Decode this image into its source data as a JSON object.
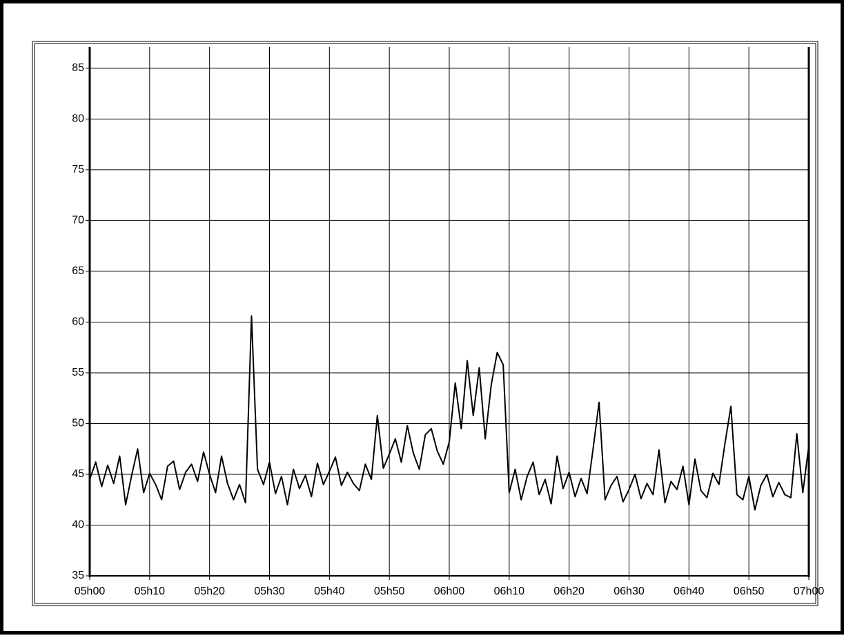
{
  "chart_data": {
    "type": "line",
    "x": [
      0,
      1,
      2,
      3,
      4,
      5,
      6,
      7,
      8,
      9,
      10,
      11,
      12,
      13,
      14,
      15,
      16,
      17,
      18,
      19,
      20,
      21,
      22,
      23,
      24,
      25,
      26,
      27,
      28,
      29,
      30,
      31,
      32,
      33,
      34,
      35,
      36,
      37,
      38,
      39,
      40,
      41,
      42,
      43,
      44,
      45,
      46,
      47,
      48,
      49,
      50,
      51,
      52,
      53,
      54,
      55,
      56,
      57,
      58,
      59,
      60,
      61,
      62,
      63,
      64,
      65,
      66,
      67,
      68,
      69,
      70,
      71,
      72,
      73,
      74,
      75,
      76,
      77,
      78,
      79,
      80,
      81,
      82,
      83,
      84,
      85,
      86,
      87,
      88,
      89,
      90,
      91,
      92,
      93,
      94,
      95,
      96,
      97,
      98,
      99,
      100,
      101,
      102,
      103,
      104,
      105,
      106,
      107,
      108,
      109,
      110,
      111,
      112,
      113,
      114,
      115,
      116,
      117,
      118,
      119,
      120
    ],
    "values": [
      44.5,
      46.2,
      43.8,
      45.9,
      44.1,
      46.8,
      42.0,
      44.9,
      47.5,
      43.2,
      45.1,
      44.0,
      42.5,
      45.8,
      46.3,
      43.5,
      45.2,
      46.0,
      44.3,
      47.2,
      45.0,
      43.2,
      46.8,
      44.1,
      42.5,
      44.0,
      42.2,
      60.6,
      45.5,
      44.0,
      46.2,
      43.1,
      44.8,
      42.0,
      45.5,
      43.6,
      44.9,
      42.8,
      46.1,
      44.0,
      45.3,
      46.7,
      43.9,
      45.2,
      44.1,
      43.4,
      46.0,
      44.5,
      50.8,
      45.6,
      47.0,
      48.5,
      46.2,
      49.8,
      47.1,
      45.5,
      48.9,
      49.5,
      47.3,
      46.0,
      48.2,
      54.0,
      49.5,
      56.2,
      50.8,
      55.5,
      48.5,
      53.8,
      57.0,
      55.8,
      43.2,
      45.5,
      42.5,
      44.8,
      46.2,
      43.0,
      44.5,
      42.1,
      46.8,
      43.6,
      45.2,
      42.8,
      44.6,
      43.1,
      47.5,
      52.1,
      42.5,
      43.9,
      44.8,
      42.3,
      43.5,
      45.0,
      42.6,
      44.1,
      43.0,
      47.4,
      42.2,
      44.3,
      43.5,
      45.8,
      42.0,
      46.5,
      43.4,
      42.7,
      45.1,
      44.0,
      48.0,
      51.7,
      43.0,
      42.5,
      44.8,
      41.5,
      43.9,
      45.0,
      42.8,
      44.2,
      43.0,
      42.7,
      49.0,
      43.2,
      47.8
    ],
    "color": "#000000",
    "xlim": [
      0,
      120
    ],
    "xticks": [
      {
        "value": 0,
        "label": "05h00"
      },
      {
        "value": 10,
        "label": "05h10"
      },
      {
        "value": 20,
        "label": "05h20"
      },
      {
        "value": 30,
        "label": "05h30"
      },
      {
        "value": 40,
        "label": "05h40"
      },
      {
        "value": 50,
        "label": "05h50"
      },
      {
        "value": 60,
        "label": "06h00"
      },
      {
        "value": 70,
        "label": "06h10"
      },
      {
        "value": 80,
        "label": "06h20"
      },
      {
        "value": 90,
        "label": "06h30"
      },
      {
        "value": 100,
        "label": "06h40"
      },
      {
        "value": 110,
        "label": "06h50"
      },
      {
        "value": 120,
        "label": "07h00"
      }
    ],
    "ylim": [
      35,
      87.1
    ],
    "yticks": [
      35,
      40,
      45,
      50,
      55,
      60,
      65,
      70,
      75,
      80,
      85
    ],
    "grid": true
  }
}
